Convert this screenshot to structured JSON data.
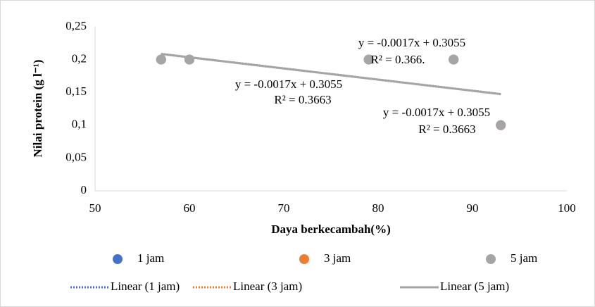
{
  "chart_data": {
    "type": "scatter",
    "x_label": "Daya berkecambah(%)",
    "y_label": "Nilai protein (g l⁻¹)",
    "xlim": [
      50,
      100
    ],
    "xticks": [
      50,
      60,
      70,
      80,
      90,
      100
    ],
    "ylim": [
      0,
      0.25
    ],
    "yticks": [
      0,
      {
        "value": 0.05,
        "label": "0,05"
      },
      {
        "value": 0.1,
        "label": "0,1"
      },
      {
        "value": 0.15,
        "label": "0,15"
      },
      {
        "value": 0.2,
        "label": "0,2"
      },
      {
        "value": 0.25,
        "label": "0,25"
      }
    ],
    "grid": false,
    "legend": "bottom",
    "series": [
      {
        "name": "1 jam",
        "color": "#4472c4",
        "x": [
          57,
          60,
          79,
          88,
          93
        ],
        "values": [
          0.2,
          0.2,
          0.2,
          0.2,
          0.1
        ]
      },
      {
        "name": "3 jam",
        "color": "#ed7d31",
        "x": [
          57,
          60,
          79,
          88,
          93
        ],
        "values": [
          0.2,
          0.2,
          0.2,
          0.2,
          0.1
        ]
      },
      {
        "name": "5 jam",
        "color": "#a5a5a5",
        "x": [
          57,
          60,
          79,
          88,
          93
        ],
        "values": [
          0.2,
          0.2,
          0.2,
          0.2,
          0.1
        ]
      }
    ],
    "trendlines": [
      {
        "name": "Linear (1 jam)",
        "color": "#4472c4",
        "style": "dotted",
        "x": [
          57,
          93
        ],
        "values": [
          0.2086,
          0.1474
        ]
      },
      {
        "name": "Linear (3 jam)",
        "color": "#ed7d31",
        "style": "dotted",
        "x": [
          57,
          93
        ],
        "values": [
          0.2086,
          0.1474
        ]
      },
      {
        "name": "Linear (5 jam)",
        "color": "#a5a5a5",
        "style": "solid",
        "x": [
          57,
          93
        ],
        "values": [
          0.2086,
          0.1474
        ]
      }
    ],
    "annotations": [
      [
        "y = -0.0017x + 0.3055",
        "R² = 0.366."
      ],
      [
        "y = -0.0017x + 0.3055",
        "R² = 0.3663"
      ],
      [
        "y = -0.0017x + 0.3055",
        "R² = 0.3663"
      ]
    ]
  }
}
